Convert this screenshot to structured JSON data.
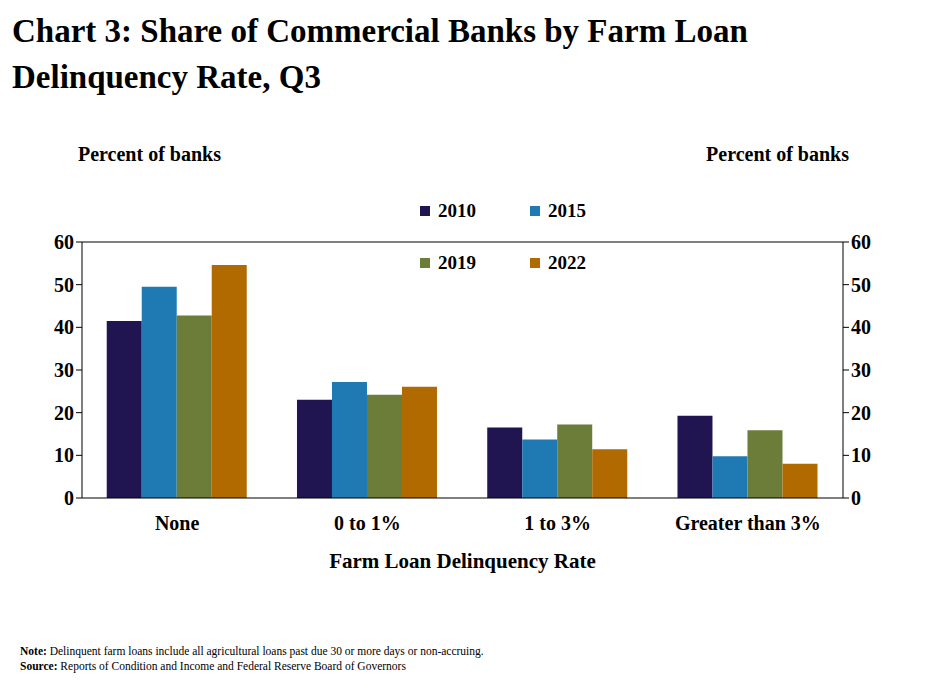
{
  "chart_data": {
    "type": "bar",
    "title": "Chart 3: Share of Commercial Banks by Farm Loan Delinquency Rate, Q3",
    "x_label": "Farm Loan Delinquency Rate",
    "y_label": "Percent of banks",
    "categories": [
      "None",
      "0 to 1%",
      "1 to 3%",
      "Greater than 3%"
    ],
    "series": [
      {
        "name": "2010",
        "color": "#211551",
        "values": [
          41.5,
          23.0,
          16.5,
          19.3
        ]
      },
      {
        "name": "2015",
        "color": "#1f7ab3",
        "values": [
          49.5,
          27.2,
          13.7,
          9.8
        ]
      },
      {
        "name": "2019",
        "color": "#6b7d38",
        "values": [
          42.8,
          24.2,
          17.2,
          15.9
        ]
      },
      {
        "name": "2022",
        "color": "#b06a00",
        "values": [
          54.6,
          26.1,
          11.4,
          8.0
        ]
      }
    ],
    "ylim": [
      0,
      60
    ],
    "yticks": [
      0,
      10,
      20,
      30,
      40,
      50,
      60
    ],
    "grid": false,
    "legend": "top",
    "note": "Note: Delinquent farm loans include all agricultural loans past due 30 or more days or non-accruing.",
    "source": "Source: Reports of Condition and Income and Federal Reserve Board of Governors"
  }
}
